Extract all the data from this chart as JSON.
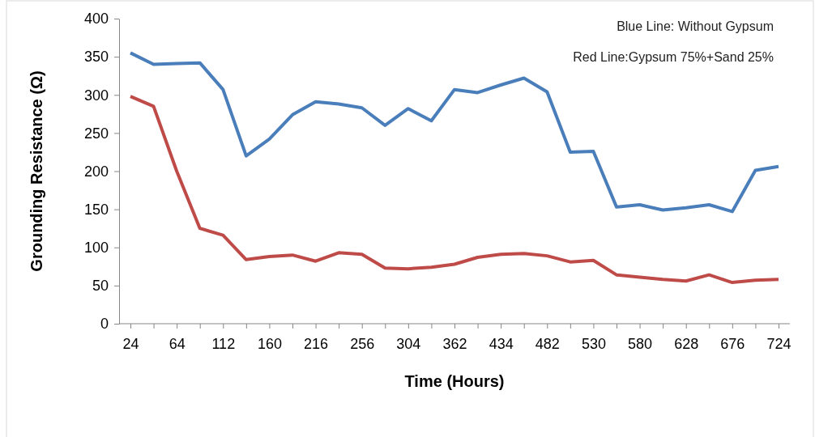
{
  "chart_data": {
    "type": "line",
    "xlabel": "Time  (Hours)",
    "ylabel": "Grounding Resistance (Ω)",
    "categories": [
      "24",
      null,
      "64",
      null,
      "112",
      null,
      "160",
      null,
      "216",
      null,
      "256",
      null,
      "304",
      null,
      "362",
      null,
      "434",
      null,
      "482",
      null,
      "530",
      null,
      "580",
      null,
      "628",
      null,
      "676",
      null,
      "724"
    ],
    "series": [
      {
        "color": "#4a7ebb",
        "values": [
          355,
          340,
          341,
          342,
          307,
          220,
          242,
          274,
          291,
          288,
          283,
          260,
          282,
          266,
          307,
          303,
          313,
          322,
          304,
          225,
          226,
          153,
          156,
          149,
          152,
          156,
          147,
          201,
          206
        ]
      },
      {
        "color": "#be4b48",
        "values": [
          298,
          285,
          200,
          125,
          116,
          84,
          88,
          90,
          82,
          93,
          91,
          73,
          72,
          74,
          78,
          87,
          91,
          92,
          89,
          81,
          83,
          64,
          61,
          58,
          56,
          64,
          54,
          57,
          58
        ]
      }
    ],
    "ylim": [
      0,
      400
    ],
    "yticks": [
      0,
      50,
      100,
      150,
      200,
      250,
      300,
      350,
      400
    ],
    "grid": false,
    "marker": "none",
    "line_style": "solid",
    "annotations": [
      "Blue Line: Without Gypsum",
      "Red Line:Gypsum 75%+Sand 25%"
    ]
  }
}
